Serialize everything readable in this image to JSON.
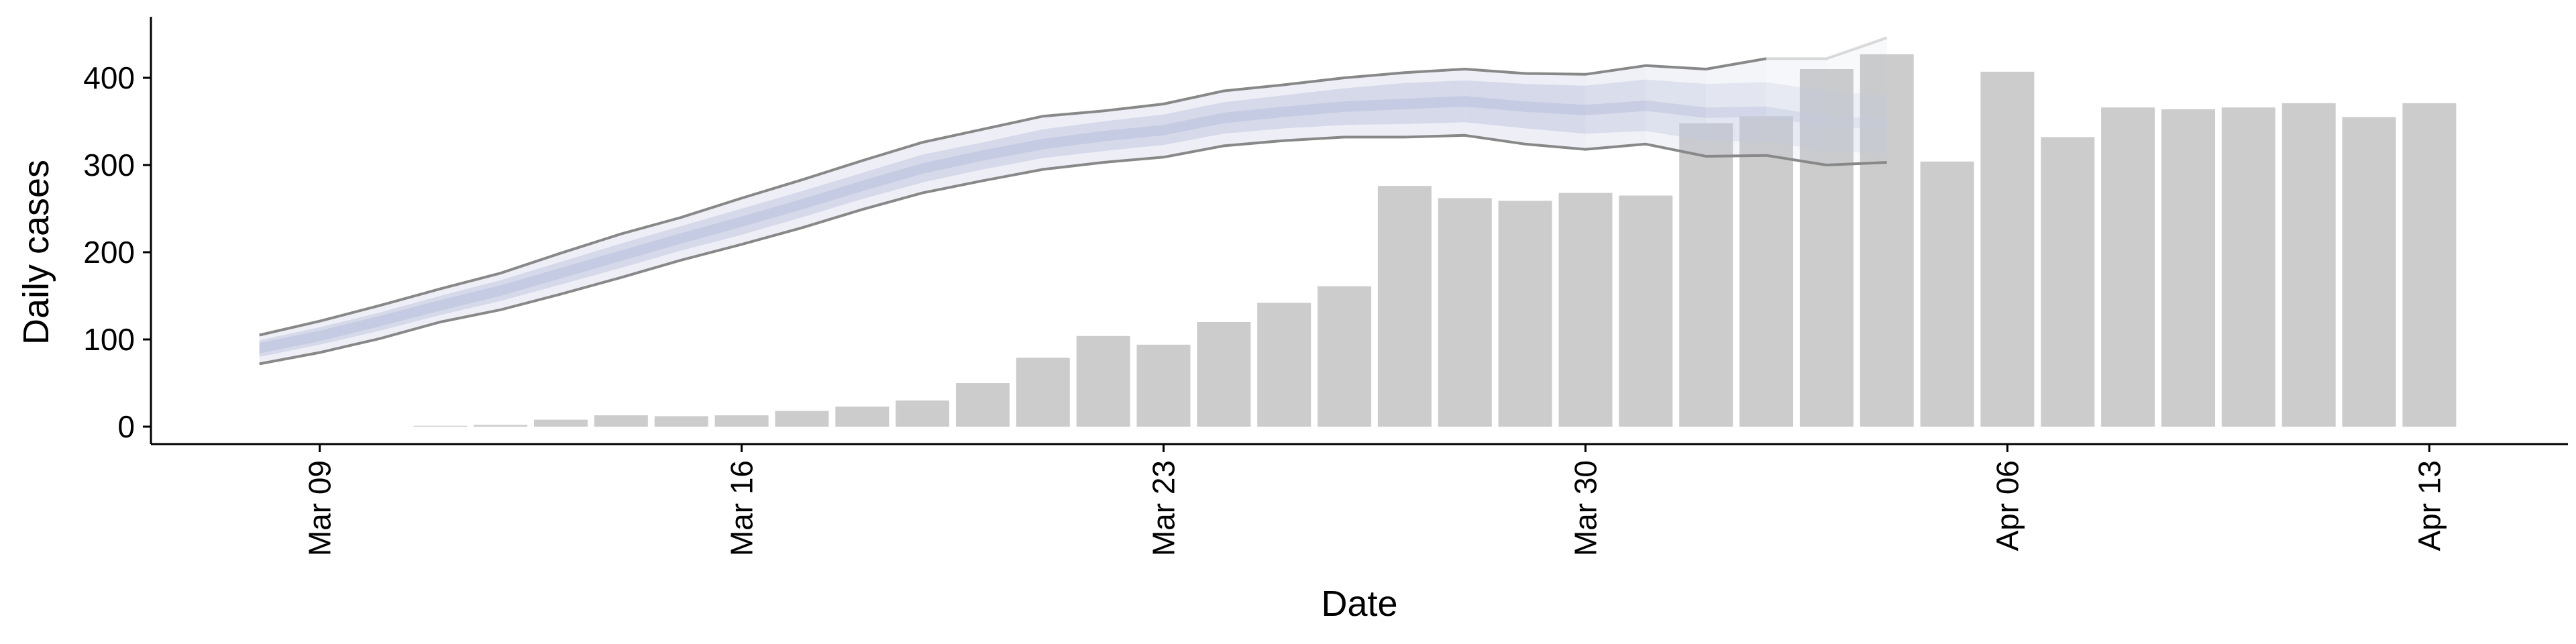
{
  "chart_data": {
    "type": "bar",
    "xlabel": "Date",
    "ylabel": "Daily cases",
    "ylim": [
      -20,
      470
    ],
    "yticks": [
      0,
      100,
      200,
      300,
      400
    ],
    "xticks": [
      "Mar 09",
      "Mar 16",
      "Mar 23",
      "Mar 30",
      "Apr 06",
      "Apr 13"
    ],
    "xtick_index": [
      0,
      7,
      14,
      21,
      28,
      35
    ],
    "xlim_index": [
      -2.8,
      37.3
    ],
    "grid": false,
    "legend": "none",
    "bars": {
      "start_index": 2,
      "values": [
        1,
        2,
        8,
        13,
        12,
        13,
        18,
        23,
        30,
        50,
        79,
        104,
        94,
        120,
        142,
        161,
        276,
        262,
        259,
        268,
        265,
        348,
        356,
        410,
        427,
        304,
        407,
        332,
        366,
        364,
        366,
        371,
        355,
        371
      ],
      "color": "#cccccc"
    },
    "nowcast": {
      "start_index": -1,
      "outer_upper": [
        105,
        121,
        139,
        158,
        176,
        199,
        221,
        240,
        262,
        283,
        305,
        326,
        341,
        356,
        362,
        370,
        385,
        392,
        400,
        406,
        410,
        405,
        404,
        414,
        410,
        422,
        422,
        446
      ],
      "outer_lower": [
        72,
        85,
        101,
        120,
        134,
        152,
        171,
        191,
        209,
        228,
        249,
        268,
        282,
        295,
        303,
        309,
        322,
        328,
        332,
        332,
        334,
        324,
        318,
        324,
        310,
        311,
        300,
        303
      ],
      "inner_upper": [
        99,
        114,
        131,
        150,
        168,
        189,
        210,
        230,
        250,
        270,
        291,
        312,
        326,
        341,
        350,
        358,
        372,
        380,
        388,
        394,
        397,
        393,
        391,
        398,
        393,
        395,
        385,
        380
      ],
      "inner_lower": [
        80,
        94,
        110,
        128,
        144,
        163,
        182,
        202,
        220,
        240,
        261,
        280,
        295,
        308,
        316,
        323,
        336,
        342,
        346,
        347,
        349,
        342,
        336,
        339,
        328,
        327,
        316,
        313
      ],
      "median": [
        90,
        104,
        121,
        139,
        156,
        176,
        196,
        216,
        235,
        255,
        276,
        296,
        311,
        324,
        333,
        340,
        354,
        361,
        367,
        370,
        373,
        367,
        363,
        368,
        360,
        361,
        350,
        347
      ],
      "outer_line_color": "#888888",
      "band_color": "#c2c8e0"
    }
  }
}
